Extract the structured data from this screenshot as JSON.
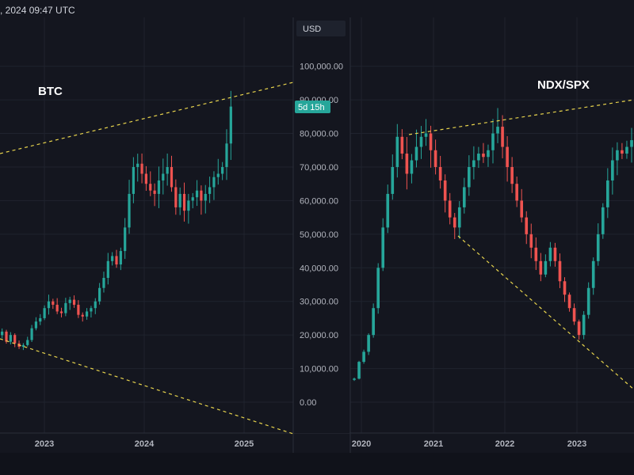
{
  "header": {
    "timestamp": ", 2024 09:47 UTC"
  },
  "price_axis": {
    "currency_label": "USD",
    "ticks": [
      "100,000.00",
      "90,000.00",
      "80,000.00",
      "70,000.00",
      "60,000.00",
      "50,000.00",
      "40,000.00",
      "30,000.00",
      "20,000.00",
      "10,000.00",
      "0.00"
    ],
    "countdown_badge": "5d 15h"
  },
  "colors": {
    "background": "#14161f",
    "up_candle": "#26a69a",
    "down_candle": "#ef5350",
    "trendline": "#e8d44d",
    "axis_text": "#b2b5be",
    "badge": "#26a69a"
  },
  "chart_data": [
    {
      "type": "candlestick",
      "label": "BTC",
      "x_tick_labels": [
        "2023",
        "2024",
        "2025"
      ],
      "price_scale": "USD",
      "approx_weekly_closes": [
        21000,
        18000,
        20000,
        17500,
        16500,
        17000,
        18500,
        22000,
        24000,
        25000,
        28000,
        30000,
        29000,
        27000,
        26500,
        29500,
        30500,
        29000,
        26000,
        25500,
        27000,
        28000,
        30000,
        34000,
        37000,
        42000,
        43500,
        41000,
        45000,
        52000,
        62000,
        70000,
        71000,
        68000,
        65000,
        63000,
        62000,
        66000,
        68000,
        70000,
        64000,
        58000,
        62000,
        57000,
        60000,
        61000,
        63000,
        60000,
        62000,
        64000,
        67000,
        68000,
        70000,
        77000,
        88000
      ],
      "trendlines": [
        {
          "style": "dashed",
          "from": [
            "2022",
            65000
          ],
          "to": [
            "2025",
            95000
          ]
        },
        {
          "style": "dashed",
          "from": [
            "2022",
            20000
          ],
          "to": [
            "2025",
            0
          ]
        }
      ]
    },
    {
      "type": "candlestick",
      "label": "NDX/SPX",
      "x_tick_labels": [
        "2020",
        "2021",
        "2022",
        "2023"
      ],
      "approx_weekly_closes": [
        7000,
        12000,
        15000,
        20000,
        28000,
        40000,
        52000,
        62000,
        70000,
        79000,
        74000,
        68000,
        72000,
        76000,
        79000,
        80000,
        75000,
        70000,
        66000,
        60000,
        55000,
        52000,
        58000,
        64000,
        70000,
        72000,
        74000,
        73000,
        75000,
        80000,
        82000,
        76000,
        70000,
        65000,
        60000,
        55000,
        50000,
        46000,
        42000,
        38000,
        42000,
        46000,
        42000,
        36000,
        32000,
        28000,
        24000,
        20000,
        26000,
        34000,
        42000,
        50000,
        58000,
        66000,
        72000,
        75000,
        74000,
        76000,
        78000
      ],
      "trendlines": [
        {
          "style": "dashed",
          "from": [
            "2020",
            80000
          ],
          "to": [
            "2024",
            92000
          ]
        },
        {
          "style": "dashed",
          "from": [
            "2021",
            50000
          ],
          "to": [
            "2024",
            5000
          ]
        }
      ]
    }
  ]
}
